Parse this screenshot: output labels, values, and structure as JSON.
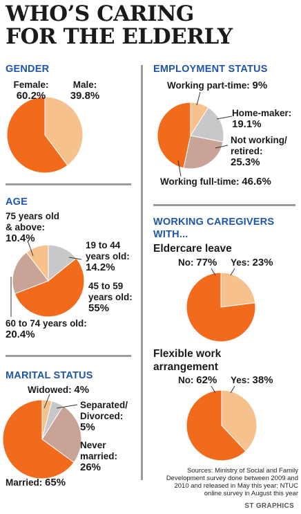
{
  "title_line1": "WHO’S CARING",
  "title_line2": "FOR THE ELDERLY",
  "colors": {
    "orange": "#f26a1b",
    "peach": "#f6c18d",
    "grey": "#c8c8c8",
    "mauve": "#c9a396",
    "heading_blue": "#1f55a8"
  },
  "labels": {
    "gender_female": "Female:",
    "gender_female_val": "60.2%",
    "gender_male": "Male:",
    "gender_male_val": "39.8%",
    "age_75": "75 years old",
    "age_75b": "& above:",
    "age_75_val": "10.4%",
    "age_19": "19 to 44",
    "age_19b": "years old:",
    "age_19_val": "14.2%",
    "age_45": "45 to 59",
    "age_45b": "years old:",
    "age_45_val": "55%",
    "age_60": "60 to 74 years old:",
    "age_60_val": "20.4%",
    "mar_widowed": "Widowed:",
    "mar_widowed_val": "4%",
    "mar_sep": "Separated/",
    "mar_sepb": "Divorced:",
    "mar_sep_val": "5%",
    "mar_never": "Never",
    "mar_neverb": "married:",
    "mar_never_val": "26%",
    "mar_married": "Married:",
    "mar_married_val": "65%",
    "emp_part": "Working part-time:",
    "emp_part_val": "9%",
    "emp_home": "Home-maker:",
    "emp_home_val": "19.1%",
    "emp_not": "Not working/",
    "emp_notb": "retired:",
    "emp_not_val": "25.3%",
    "emp_full": "Working full-time:",
    "emp_full_val": "46.6%",
    "leave_no": "No:",
    "leave_no_val": "77%",
    "leave_yes": "Yes:",
    "leave_yes_val": "23%",
    "flex_no": "No:",
    "flex_no_val": "62%",
    "flex_yes": "Yes:",
    "flex_yes_val": "38%"
  },
  "sources": "Sources: Ministry of Social and Family Development survey done between 2009 and 2010 and released in May this year; NTUC online survey in August this year",
  "credit": "ST GRAPHICS",
  "chart_data": [
    {
      "type": "pie",
      "title": "GENDER",
      "series": [
        {
          "label": "Male",
          "value": 39.8,
          "color": "#f6c18d"
        },
        {
          "label": "Female",
          "value": 60.2,
          "color": "#f26a1b"
        }
      ]
    },
    {
      "type": "pie",
      "title": "AGE",
      "series": [
        {
          "label": "19 to 44 years old",
          "value": 14.2,
          "color": "#c8c8c8"
        },
        {
          "label": "45 to 59 years old",
          "value": 55,
          "color": "#f26a1b"
        },
        {
          "label": "60 to 74 years old",
          "value": 20.4,
          "color": "#c9a396"
        },
        {
          "label": "75 years old & above",
          "value": 10.4,
          "color": "#f6c18d"
        }
      ]
    },
    {
      "type": "pie",
      "title": "MARITAL STATUS",
      "series": [
        {
          "label": "Widowed",
          "value": 4,
          "color": "#f6c18d"
        },
        {
          "label": "Separated/Divorced",
          "value": 5,
          "color": "#c8c8c8"
        },
        {
          "label": "Never married",
          "value": 26,
          "color": "#c9a396"
        },
        {
          "label": "Married",
          "value": 65,
          "color": "#f26a1b"
        }
      ]
    },
    {
      "type": "pie",
      "title": "EMPLOYMENT STATUS",
      "series": [
        {
          "label": "Working part-time",
          "value": 9,
          "color": "#f6c18d"
        },
        {
          "label": "Home-maker",
          "value": 19.1,
          "color": "#c8c8c8"
        },
        {
          "label": "Not working/retired",
          "value": 25.3,
          "color": "#c9a396"
        },
        {
          "label": "Working full-time",
          "value": 46.6,
          "color": "#f26a1b"
        }
      ]
    },
    {
      "type": "pie",
      "title": "WORKING CAREGIVERS WITH...",
      "subtitle": "Eldercare leave",
      "series": [
        {
          "label": "Yes",
          "value": 23,
          "color": "#f6c18d"
        },
        {
          "label": "No",
          "value": 77,
          "color": "#f26a1b"
        }
      ]
    },
    {
      "type": "pie",
      "title": "WORKING CAREGIVERS WITH...",
      "subtitle": "Flexible work arrangement",
      "series": [
        {
          "label": "Yes",
          "value": 38,
          "color": "#f6c18d"
        },
        {
          "label": "No",
          "value": 62,
          "color": "#f26a1b"
        }
      ]
    }
  ]
}
